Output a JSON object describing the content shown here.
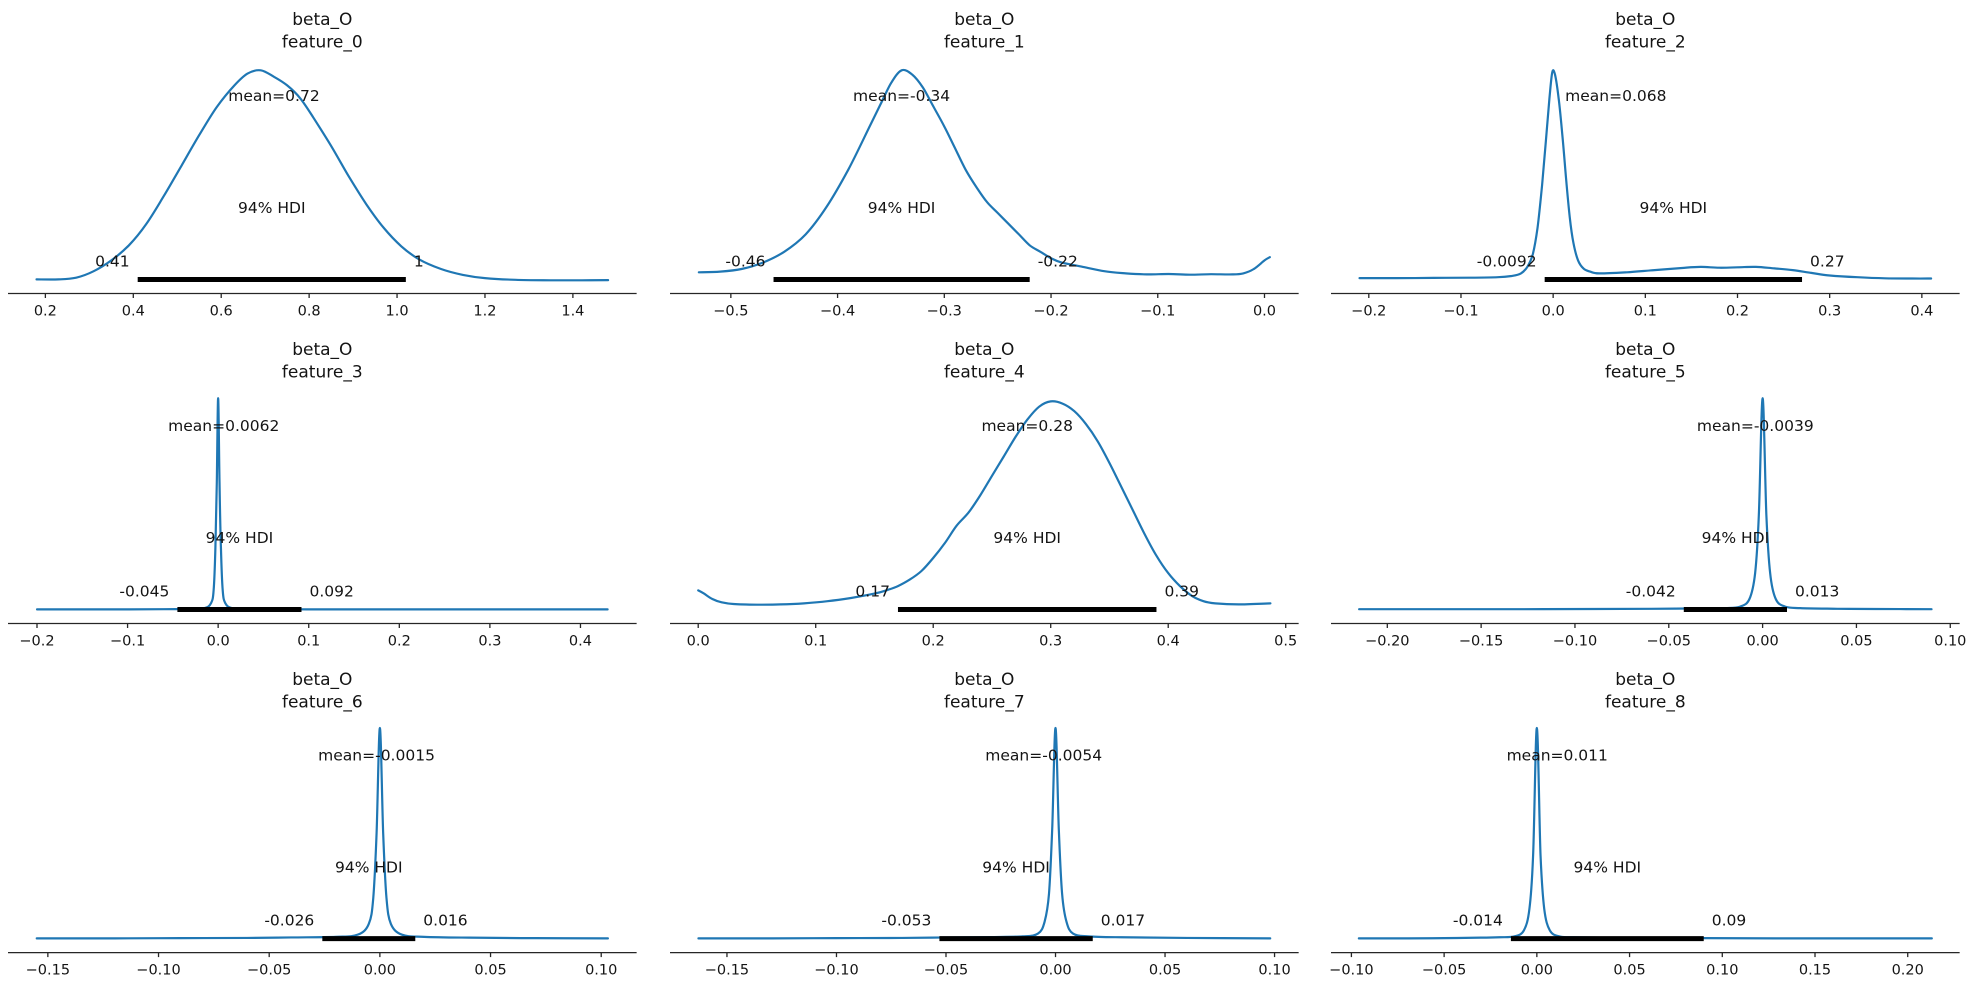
{
  "figure": {
    "background": "#ffffff",
    "curve_color": "#1f77b4",
    "hdi_bar_color": "#000000",
    "text_color": "#141414",
    "axis_color": "#262626"
  },
  "chart_data": [
    {
      "type": "kde",
      "variable": "beta_O",
      "feature": "feature_0",
      "title_line1": "beta_O",
      "title_line2": "feature_0",
      "mean": 0.72,
      "mean_label": "mean=0.72",
      "hdi_text": "94% HDI",
      "hdi": [
        0.41,
        1.02
      ],
      "hdi_lower_label": "0.41",
      "hdi_upper_label": "1",
      "xlim": [
        0.115,
        1.545
      ],
      "xticks": [
        0.2,
        0.4,
        0.6,
        0.8,
        1.0,
        1.2,
        1.4
      ],
      "xtick_labels": [
        "0.2",
        "0.4",
        "0.6",
        "0.8",
        "1.0",
        "1.2",
        "1.4"
      ],
      "curve": [
        [
          0.18,
          0.012
        ],
        [
          0.23,
          0.012
        ],
        [
          0.27,
          0.02
        ],
        [
          0.31,
          0.05
        ],
        [
          0.35,
          0.1
        ],
        [
          0.39,
          0.17
        ],
        [
          0.43,
          0.27
        ],
        [
          0.47,
          0.4
        ],
        [
          0.51,
          0.54
        ],
        [
          0.55,
          0.68
        ],
        [
          0.59,
          0.81
        ],
        [
          0.63,
          0.91
        ],
        [
          0.66,
          0.965
        ],
        [
          0.69,
          0.98
        ],
        [
          0.72,
          0.95
        ],
        [
          0.75,
          0.91
        ],
        [
          0.78,
          0.85
        ],
        [
          0.81,
          0.76
        ],
        [
          0.85,
          0.63
        ],
        [
          0.89,
          0.49
        ],
        [
          0.93,
          0.36
        ],
        [
          0.97,
          0.25
        ],
        [
          1.01,
          0.165
        ],
        [
          1.05,
          0.105
        ],
        [
          1.1,
          0.06
        ],
        [
          1.15,
          0.033
        ],
        [
          1.2,
          0.018
        ],
        [
          1.27,
          0.01
        ],
        [
          1.35,
          0.008
        ],
        [
          1.42,
          0.008
        ],
        [
          1.48,
          0.009
        ]
      ]
    },
    {
      "type": "kde",
      "variable": "beta_O",
      "feature": "feature_1",
      "title_line1": "beta_O",
      "title_line2": "feature_1",
      "mean": -0.34,
      "mean_label": "mean=-0.34",
      "hdi_text": "94% HDI",
      "hdi": [
        -0.46,
        -0.22
      ],
      "hdi_lower_label": "-0.46",
      "hdi_upper_label": "-0.22",
      "xlim": [
        -0.557,
        0.032
      ],
      "xticks": [
        -0.5,
        -0.4,
        -0.3,
        -0.2,
        -0.1,
        0.0
      ],
      "xtick_labels": [
        "−0.5",
        "−0.4",
        "−0.3",
        "−0.2",
        "−0.1",
        "0.0"
      ],
      "curve": [
        [
          -0.53,
          0.045
        ],
        [
          -0.51,
          0.048
        ],
        [
          -0.49,
          0.06
        ],
        [
          -0.47,
          0.09
        ],
        [
          -0.45,
          0.14
        ],
        [
          -0.43,
          0.22
        ],
        [
          -0.41,
          0.35
        ],
        [
          -0.39,
          0.52
        ],
        [
          -0.37,
          0.72
        ],
        [
          -0.36,
          0.82
        ],
        [
          -0.35,
          0.92
        ],
        [
          -0.34,
          0.98
        ],
        [
          -0.33,
          0.96
        ],
        [
          -0.32,
          0.9
        ],
        [
          -0.31,
          0.81
        ],
        [
          -0.3,
          0.72
        ],
        [
          -0.29,
          0.62
        ],
        [
          -0.28,
          0.52
        ],
        [
          -0.27,
          0.44
        ],
        [
          -0.26,
          0.37
        ],
        [
          -0.25,
          0.32
        ],
        [
          -0.24,
          0.27
        ],
        [
          -0.23,
          0.22
        ],
        [
          -0.22,
          0.17
        ],
        [
          -0.21,
          0.14
        ],
        [
          -0.2,
          0.11
        ],
        [
          -0.19,
          0.09
        ],
        [
          -0.17,
          0.07
        ],
        [
          -0.15,
          0.05
        ],
        [
          -0.13,
          0.04
        ],
        [
          -0.11,
          0.035
        ],
        [
          -0.09,
          0.037
        ],
        [
          -0.07,
          0.034
        ],
        [
          -0.05,
          0.036
        ],
        [
          -0.03,
          0.035
        ],
        [
          -0.02,
          0.04
        ],
        [
          -0.01,
          0.06
        ],
        [
          0.0,
          0.1
        ],
        [
          0.005,
          0.115
        ]
      ]
    },
    {
      "type": "kde",
      "variable": "beta_O",
      "feature": "feature_2",
      "title_line1": "beta_O",
      "title_line2": "feature_2",
      "mean": 0.068,
      "mean_label": "mean=0.068",
      "hdi_text": "94% HDI",
      "hdi": [
        -0.0092,
        0.27
      ],
      "hdi_lower_label": "-0.0092",
      "hdi_upper_label": "0.27",
      "xlim": [
        -0.241,
        0.441
      ],
      "xticks": [
        -0.2,
        -0.1,
        0.0,
        0.1,
        0.2,
        0.3,
        0.4
      ],
      "xtick_labels": [
        "−0.2",
        "−0.1",
        "0.0",
        "0.1",
        "0.2",
        "0.3",
        "0.4"
      ],
      "curve": [
        [
          -0.21,
          0.018
        ],
        [
          -0.17,
          0.018
        ],
        [
          -0.13,
          0.019
        ],
        [
          -0.09,
          0.02
        ],
        [
          -0.06,
          0.022
        ],
        [
          -0.045,
          0.028
        ],
        [
          -0.035,
          0.04
        ],
        [
          -0.028,
          0.07
        ],
        [
          -0.022,
          0.13
        ],
        [
          -0.017,
          0.25
        ],
        [
          -0.012,
          0.45
        ],
        [
          -0.008,
          0.65
        ],
        [
          -0.004,
          0.85
        ],
        [
          -0.001,
          0.97
        ],
        [
          0.002,
          0.96
        ],
        [
          0.006,
          0.85
        ],
        [
          0.01,
          0.68
        ],
        [
          0.014,
          0.48
        ],
        [
          0.018,
          0.3
        ],
        [
          0.022,
          0.18
        ],
        [
          0.027,
          0.1
        ],
        [
          0.033,
          0.062
        ],
        [
          0.04,
          0.048
        ],
        [
          0.05,
          0.04
        ],
        [
          0.08,
          0.045
        ],
        [
          0.11,
          0.055
        ],
        [
          0.14,
          0.065
        ],
        [
          0.16,
          0.07
        ],
        [
          0.18,
          0.066
        ],
        [
          0.2,
          0.068
        ],
        [
          0.22,
          0.07
        ],
        [
          0.24,
          0.063
        ],
        [
          0.26,
          0.055
        ],
        [
          0.28,
          0.042
        ],
        [
          0.3,
          0.03
        ],
        [
          0.33,
          0.022
        ],
        [
          0.36,
          0.017
        ],
        [
          0.39,
          0.016
        ],
        [
          0.41,
          0.016
        ]
      ]
    },
    {
      "type": "kde",
      "variable": "beta_O",
      "feature": "feature_3",
      "title_line1": "beta_O",
      "title_line2": "feature_3",
      "mean": 0.0062,
      "mean_label": "mean=0.0062",
      "hdi_text": "94% HDI",
      "hdi": [
        -0.045,
        0.092
      ],
      "hdi_lower_label": "-0.045",
      "hdi_upper_label": "0.092",
      "xlim": [
        -0.232,
        0.462
      ],
      "xticks": [
        -0.2,
        -0.1,
        0.0,
        0.1,
        0.2,
        0.3,
        0.4
      ],
      "xtick_labels": [
        "−0.2",
        "−0.1",
        "0.0",
        "0.1",
        "0.2",
        "0.3",
        "0.4"
      ],
      "curve": [
        [
          -0.2,
          0.012
        ],
        [
          -0.15,
          0.012
        ],
        [
          -0.1,
          0.012
        ],
        [
          -0.06,
          0.013
        ],
        [
          -0.03,
          0.014
        ],
        [
          -0.015,
          0.018
        ],
        [
          -0.008,
          0.04
        ],
        [
          -0.005,
          0.1
        ],
        [
          -0.003,
          0.3
        ],
        [
          -0.0015,
          0.6
        ],
        [
          0.0,
          0.99
        ],
        [
          0.0015,
          0.6
        ],
        [
          0.003,
          0.3
        ],
        [
          0.005,
          0.1
        ],
        [
          0.008,
          0.04
        ],
        [
          0.015,
          0.018
        ],
        [
          0.03,
          0.014
        ],
        [
          0.06,
          0.013
        ],
        [
          0.1,
          0.012
        ],
        [
          0.15,
          0.012
        ],
        [
          0.2,
          0.012
        ],
        [
          0.25,
          0.012
        ],
        [
          0.3,
          0.012
        ],
        [
          0.35,
          0.012
        ],
        [
          0.4,
          0.012
        ],
        [
          0.43,
          0.012
        ]
      ]
    },
    {
      "type": "kde",
      "variable": "beta_O",
      "feature": "feature_4",
      "title_line1": "beta_O",
      "title_line2": "feature_4",
      "mean": 0.28,
      "mean_label": "mean=0.28",
      "hdi_text": "94% HDI",
      "hdi": [
        0.17,
        0.39
      ],
      "hdi_lower_label": "0.17",
      "hdi_upper_label": "0.39",
      "xlim": [
        -0.024,
        0.511
      ],
      "xticks": [
        0.0,
        0.1,
        0.2,
        0.3,
        0.4,
        0.5
      ],
      "xtick_labels": [
        "0.0",
        "0.1",
        "0.2",
        "0.3",
        "0.4",
        "0.5"
      ],
      "curve": [
        [
          0.0,
          0.1
        ],
        [
          0.005,
          0.085
        ],
        [
          0.012,
          0.06
        ],
        [
          0.02,
          0.045
        ],
        [
          0.03,
          0.037
        ],
        [
          0.05,
          0.034
        ],
        [
          0.07,
          0.035
        ],
        [
          0.09,
          0.04
        ],
        [
          0.11,
          0.05
        ],
        [
          0.13,
          0.065
        ],
        [
          0.15,
          0.085
        ],
        [
          0.16,
          0.1
        ],
        [
          0.17,
          0.12
        ],
        [
          0.18,
          0.15
        ],
        [
          0.19,
          0.19
        ],
        [
          0.2,
          0.25
        ],
        [
          0.21,
          0.32
        ],
        [
          0.22,
          0.4
        ],
        [
          0.23,
          0.46
        ],
        [
          0.24,
          0.54
        ],
        [
          0.25,
          0.63
        ],
        [
          0.26,
          0.72
        ],
        [
          0.27,
          0.81
        ],
        [
          0.28,
          0.89
        ],
        [
          0.29,
          0.95
        ],
        [
          0.3,
          0.975
        ],
        [
          0.31,
          0.965
        ],
        [
          0.32,
          0.93
        ],
        [
          0.33,
          0.87
        ],
        [
          0.34,
          0.79
        ],
        [
          0.35,
          0.69
        ],
        [
          0.36,
          0.58
        ],
        [
          0.37,
          0.47
        ],
        [
          0.38,
          0.36
        ],
        [
          0.39,
          0.26
        ],
        [
          0.4,
          0.18
        ],
        [
          0.41,
          0.12
        ],
        [
          0.42,
          0.075
        ],
        [
          0.43,
          0.05
        ],
        [
          0.44,
          0.04
        ],
        [
          0.46,
          0.035
        ],
        [
          0.487,
          0.04
        ]
      ]
    },
    {
      "type": "kde",
      "variable": "beta_O",
      "feature": "feature_5",
      "title_line1": "beta_O",
      "title_line2": "feature_5",
      "mean": -0.0039,
      "mean_label": "mean=-0.0039",
      "hdi_text": "94% HDI",
      "hdi": [
        -0.042,
        0.013
      ],
      "hdi_lower_label": "-0.042",
      "hdi_upper_label": "0.013",
      "xlim": [
        -0.23,
        0.105
      ],
      "xticks": [
        -0.2,
        -0.15,
        -0.1,
        -0.05,
        0.0,
        0.05,
        0.1
      ],
      "xtick_labels": [
        "−0.20",
        "−0.15",
        "−0.10",
        "−0.05",
        "0.00",
        "0.05",
        "0.10"
      ],
      "curve": [
        [
          -0.215,
          0.013
        ],
        [
          -0.17,
          0.013
        ],
        [
          -0.13,
          0.013
        ],
        [
          -0.09,
          0.014
        ],
        [
          -0.06,
          0.015
        ],
        [
          -0.04,
          0.016
        ],
        [
          -0.02,
          0.018
        ],
        [
          -0.012,
          0.025
        ],
        [
          -0.007,
          0.06
        ],
        [
          -0.004,
          0.18
        ],
        [
          -0.002,
          0.45
        ],
        [
          0.0,
          0.99
        ],
        [
          0.002,
          0.45
        ],
        [
          0.004,
          0.18
        ],
        [
          0.007,
          0.06
        ],
        [
          0.012,
          0.025
        ],
        [
          0.02,
          0.018
        ],
        [
          0.04,
          0.015
        ],
        [
          0.06,
          0.014
        ],
        [
          0.09,
          0.013
        ]
      ]
    },
    {
      "type": "kde",
      "variable": "beta_O",
      "feature": "feature_6",
      "title_line1": "beta_O",
      "title_line2": "feature_6",
      "mean": -0.0015,
      "mean_label": "mean=-0.0015",
      "hdi_text": "94% HDI",
      "hdi": [
        -0.026,
        0.016
      ],
      "hdi_lower_label": "-0.026",
      "hdi_upper_label": "0.016",
      "xlim": [
        -0.168,
        0.116
      ],
      "xticks": [
        -0.15,
        -0.1,
        -0.05,
        0.0,
        0.05,
        0.1
      ],
      "xtick_labels": [
        "−0.15",
        "−0.10",
        "−0.05",
        "0.00",
        "0.05",
        "0.10"
      ],
      "curve": [
        [
          -0.155,
          0.013
        ],
        [
          -0.12,
          0.013
        ],
        [
          -0.09,
          0.014
        ],
        [
          -0.06,
          0.015
        ],
        [
          -0.04,
          0.017
        ],
        [
          -0.02,
          0.02
        ],
        [
          -0.01,
          0.03
        ],
        [
          -0.005,
          0.08
        ],
        [
          -0.003,
          0.2
        ],
        [
          -0.0015,
          0.5
        ],
        [
          0.0,
          0.99
        ],
        [
          0.0015,
          0.5
        ],
        [
          0.003,
          0.2
        ],
        [
          0.005,
          0.08
        ],
        [
          0.01,
          0.03
        ],
        [
          0.02,
          0.02
        ],
        [
          0.04,
          0.016
        ],
        [
          0.07,
          0.014
        ],
        [
          0.103,
          0.013
        ]
      ]
    },
    {
      "type": "kde",
      "variable": "beta_O",
      "feature": "feature_7",
      "title_line1": "beta_O",
      "title_line2": "feature_7",
      "mean": -0.0054,
      "mean_label": "mean=-0.0054",
      "hdi_text": "94% HDI",
      "hdi": [
        -0.053,
        0.017
      ],
      "hdi_lower_label": "-0.053",
      "hdi_upper_label": "0.017",
      "xlim": [
        -0.176,
        0.111
      ],
      "xticks": [
        -0.15,
        -0.1,
        -0.05,
        0.0,
        0.05,
        0.1
      ],
      "xtick_labels": [
        "−0.15",
        "−0.10",
        "−0.05",
        "0.00",
        "0.05",
        "0.10"
      ],
      "curve": [
        [
          -0.163,
          0.013
        ],
        [
          -0.13,
          0.013
        ],
        [
          -0.1,
          0.014
        ],
        [
          -0.07,
          0.015
        ],
        [
          -0.05,
          0.017
        ],
        [
          -0.03,
          0.019
        ],
        [
          -0.015,
          0.022
        ],
        [
          -0.008,
          0.035
        ],
        [
          -0.005,
          0.09
        ],
        [
          -0.003,
          0.22
        ],
        [
          -0.0015,
          0.52
        ],
        [
          0.0,
          0.99
        ],
        [
          0.0015,
          0.52
        ],
        [
          0.003,
          0.22
        ],
        [
          0.005,
          0.09
        ],
        [
          0.008,
          0.035
        ],
        [
          0.015,
          0.022
        ],
        [
          0.03,
          0.018
        ],
        [
          0.06,
          0.015
        ],
        [
          0.098,
          0.013
        ]
      ]
    },
    {
      "type": "kde",
      "variable": "beta_O",
      "feature": "feature_8",
      "title_line1": "beta_O",
      "title_line2": "feature_8",
      "mean": 0.011,
      "mean_label": "mean=0.011",
      "hdi_text": "94% HDI",
      "hdi": [
        -0.014,
        0.09
      ],
      "hdi_lower_label": "-0.014",
      "hdi_upper_label": "0.09",
      "xlim": [
        -0.111,
        0.228
      ],
      "xticks": [
        -0.1,
        -0.05,
        0.0,
        0.05,
        0.1,
        0.15,
        0.2
      ],
      "xtick_labels": [
        "−0.10",
        "−0.05",
        "0.00",
        "0.05",
        "0.10",
        "0.15",
        "0.20"
      ],
      "curve": [
        [
          -0.096,
          0.013
        ],
        [
          -0.07,
          0.013
        ],
        [
          -0.05,
          0.014
        ],
        [
          -0.03,
          0.016
        ],
        [
          -0.02,
          0.018
        ],
        [
          -0.012,
          0.022
        ],
        [
          -0.007,
          0.05
        ],
        [
          -0.004,
          0.15
        ],
        [
          -0.002,
          0.4
        ],
        [
          0.0,
          0.99
        ],
        [
          0.002,
          0.4
        ],
        [
          0.004,
          0.15
        ],
        [
          0.007,
          0.05
        ],
        [
          0.012,
          0.022
        ],
        [
          0.02,
          0.018
        ],
        [
          0.05,
          0.015
        ],
        [
          0.09,
          0.014
        ],
        [
          0.13,
          0.013
        ],
        [
          0.17,
          0.013
        ],
        [
          0.213,
          0.013
        ]
      ]
    }
  ]
}
